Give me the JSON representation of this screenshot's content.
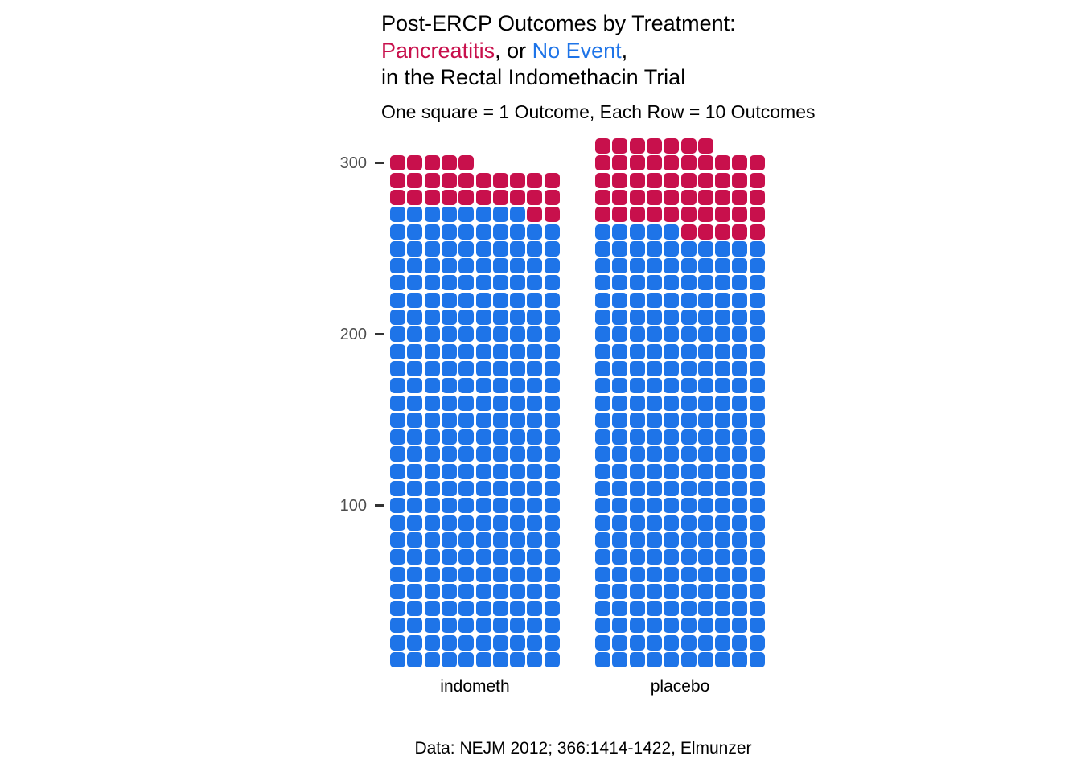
{
  "title": {
    "line1": "Post-ERCP Outcomes by Treatment:",
    "line2_segments": [
      {
        "text": "Pancreatitis",
        "color": "#C8104C"
      },
      {
        "text": ", or ",
        "color": "#000000"
      },
      {
        "text": "No Event",
        "color": "#1E74E8"
      },
      {
        "text": ",",
        "color": "#000000"
      }
    ],
    "line3": "in the Rectal Indomethacin Trial"
  },
  "subtitle": "One square = 1 Outcome, Each Row = 10 Outcomes",
  "caption": "Data: NEJM 2012; 366:1414-1422, Elmunzer",
  "axis": {
    "y_ticks": [
      {
        "label": "300",
        "value": 300
      },
      {
        "label": "200",
        "value": 200
      },
      {
        "label": "100",
        "value": 100
      }
    ],
    "x_labels": [
      "indometh",
      "placebo"
    ]
  },
  "colors": {
    "pancreatitis": "#C8104C",
    "no_event": "#1E74E8",
    "axis_text": "#4D4D4D",
    "tick": "#333333",
    "background": "#FFFFFF"
  },
  "chart_data": {
    "type": "waffle",
    "unit": "1 square = 1 outcome",
    "row_size": 10,
    "fill_order": "bottom-to-top, left-to-right; No Event filled first, Pancreatitis on top",
    "categories": [
      "indometh",
      "placebo"
    ],
    "totals": [
      295,
      307
    ],
    "series": [
      {
        "name": "Pancreatitis",
        "color": "#C8104C",
        "values": [
          27,
          52
        ]
      },
      {
        "name": "No Event",
        "color": "#1E74E8",
        "values": [
          268,
          255
        ]
      }
    ],
    "title": "Post-ERCP Outcomes by Treatment: Pancreatitis, or No Event, in the Rectal Indomethacin Trial",
    "subtitle": "One square = 1 Outcome, Each Row = 10 Outcomes",
    "caption": "Data: NEJM 2012; 366:1414-1422, Elmunzer",
    "xlabel": "",
    "ylabel": "",
    "y_tick_values": [
      100,
      200,
      300
    ],
    "legend": "none (colors identified in title text)"
  }
}
